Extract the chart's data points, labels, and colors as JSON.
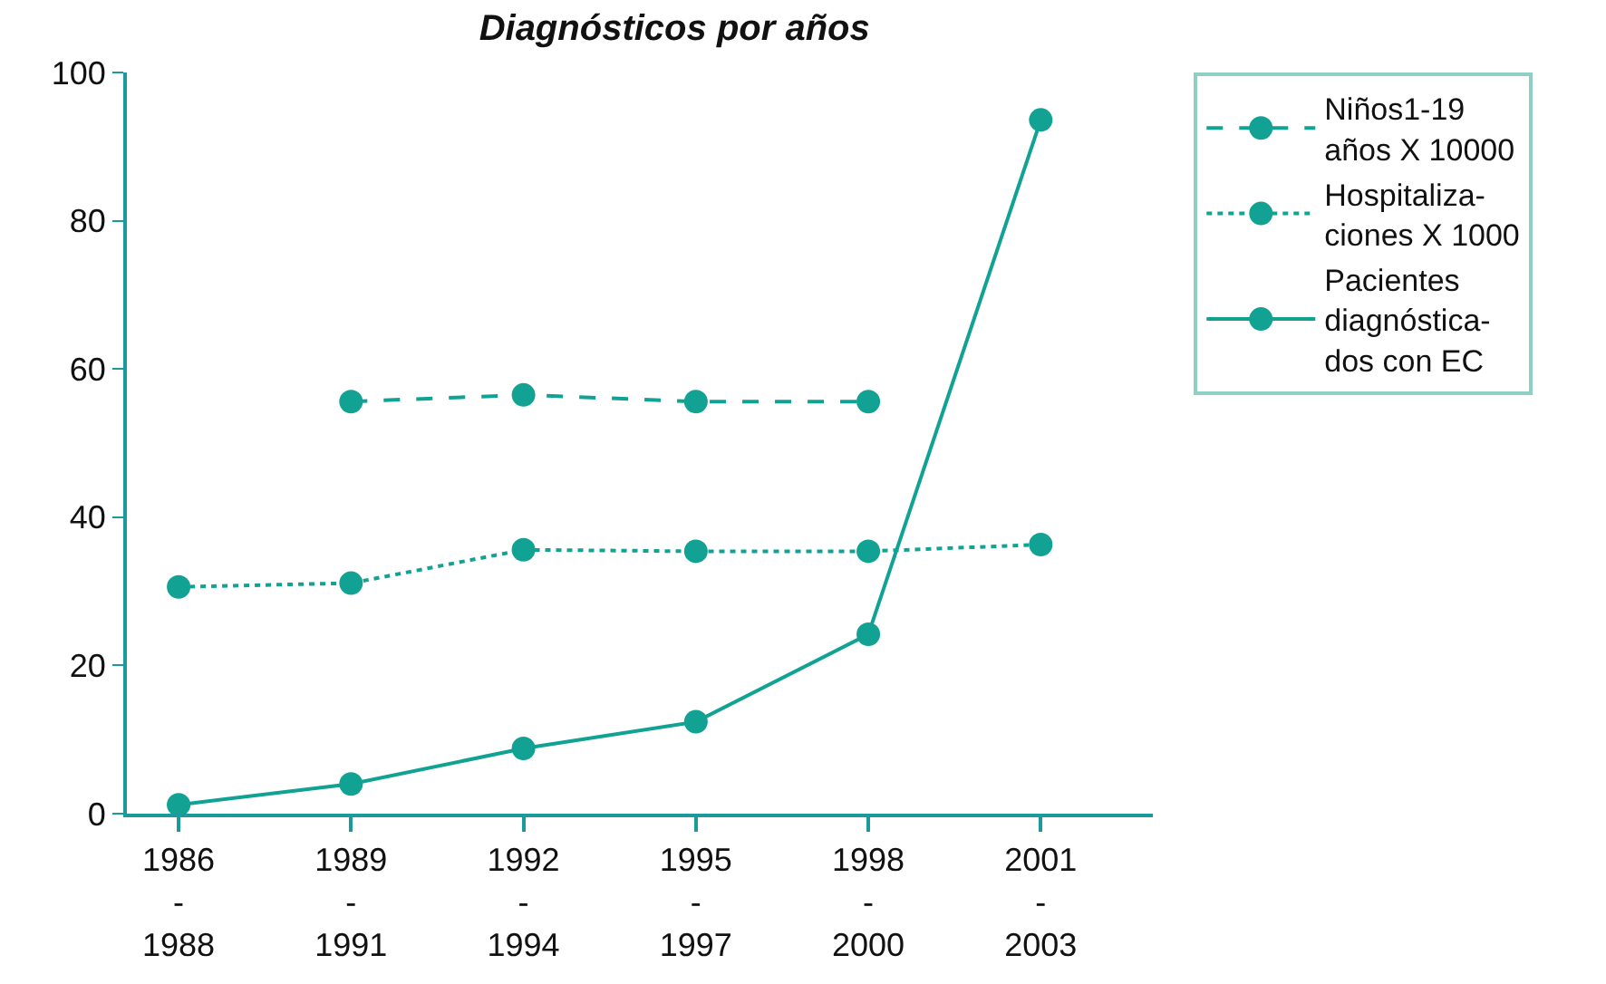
{
  "chart_data": {
    "type": "line",
    "title": "Diagnósticos por años",
    "categories": [
      "1986\n-\n1988",
      "1989\n-\n1991",
      "1992\n-\n1994",
      "1995\n-\n1997",
      "1998\n-\n2000",
      "2001\n-\n2003"
    ],
    "series": [
      {
        "name": "Niños1-19\naños X 10000",
        "color": "#12a293",
        "line_style": "dashed",
        "values": [
          null,
          55.6,
          56.5,
          55.6,
          55.6,
          null
        ]
      },
      {
        "name": "Hospitaliza-\nciones X 1000",
        "color": "#12a293",
        "line_style": "dotted",
        "values": [
          30.6,
          31.1,
          35.6,
          35.4,
          35.4,
          36.3
        ]
      },
      {
        "name": "Pacientes\ndiagnóstica-\ndos con EC",
        "color": "#12a293",
        "line_style": "solid",
        "values": [
          1.2,
          4.0,
          8.8,
          12.4,
          24.2,
          93.6
        ]
      }
    ],
    "ylim": [
      0,
      100
    ],
    "yticks": [
      0,
      20,
      40,
      60,
      80,
      100
    ],
    "marker": "circle",
    "legend": "right"
  }
}
